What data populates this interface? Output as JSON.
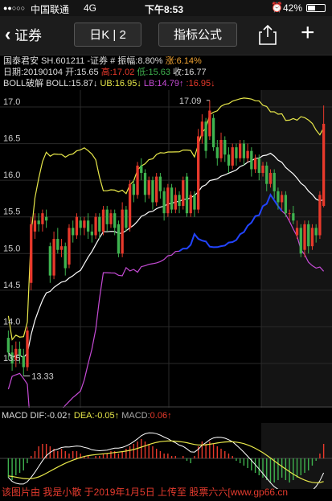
{
  "statusbar": {
    "signal": "●●○○○",
    "carrier": "中国联通",
    "network": "4G",
    "time": "下午8:53",
    "battery": "42%"
  },
  "navbar": {
    "back_label": "证券",
    "period_label": "日K | 2",
    "indicator_label": "指标公式"
  },
  "info": {
    "name": "国泰君安 SH.601211 -证券",
    "amplitude_prefix": "# 振幅:",
    "amplitude": "8.80%",
    "change_prefix": "涨:",
    "change": "6.14%",
    "date_prefix": "日期:",
    "date": "20190104",
    "open_prefix": "开:",
    "open": "15.65",
    "high_prefix": "高:",
    "high": "17.02",
    "low_prefix": "低:",
    "low": "15.63",
    "close_prefix": "收:",
    "close": "16.77",
    "boll_prefix": "BOLL破解 BOLL:",
    "boll": "15.87↓",
    "ub_prefix": "UB:",
    "ub": "16.95↓",
    "lb_prefix": "LB:",
    "lb": "14.79↑",
    "extra": ":16.95↓"
  },
  "macd": {
    "dif_label": "MACD DIF:",
    "dif": "-0.02↑",
    "dea_label": "DEA:",
    "dea": "-0.05↑",
    "macd_label": "MACD:",
    "macd": "0.06↑"
  },
  "watermark": "该图片由 我是小散 于2019年1月5日 上传至 股票六六[www.gp66.cn",
  "colors": {
    "up": "#e8392b",
    "down": "#3fb34f",
    "ub": "#e8e84a",
    "mid": "#ffffff",
    "lb": "#c64bd6",
    "lb_highlight": "#2244ff",
    "boll_ub_peak": "#ff3b30"
  },
  "chart_data": {
    "type": "candlestick",
    "price_ticks": [
      "17.0",
      "16.5",
      "16.0",
      "15.5",
      "15.0",
      "14.5",
      "14.0",
      "13.5"
    ],
    "ylim": [
      13.3,
      17.2
    ],
    "annotations": [
      {
        "text": "17.09",
        "value": 17.09
      },
      {
        "text": "13.33",
        "value": 13.33
      }
    ],
    "candles": [
      [
        13.85,
        13.65,
        13.95,
        13.55
      ],
      [
        13.65,
        13.5,
        13.75,
        13.4
      ],
      [
        13.55,
        13.7,
        13.8,
        13.45
      ],
      [
        13.7,
        13.6,
        13.8,
        13.5
      ],
      [
        13.6,
        13.45,
        13.7,
        13.33
      ],
      [
        13.45,
        13.95,
        14.0,
        13.4
      ],
      [
        14.6,
        15.4,
        15.5,
        14.5
      ],
      [
        15.3,
        15.45,
        15.55,
        15.2
      ],
      [
        15.45,
        15.4,
        15.55,
        15.3
      ],
      [
        15.4,
        15.55,
        15.6,
        15.3
      ],
      [
        15.5,
        15.45,
        15.6,
        15.35
      ],
      [
        15.1,
        14.7,
        15.15,
        14.6
      ],
      [
        14.7,
        15.2,
        15.3,
        14.65
      ],
      [
        15.2,
        15.05,
        15.35,
        15.0
      ],
      [
        15.05,
        15.1,
        15.2,
        14.95
      ],
      [
        15.1,
        14.8,
        15.15,
        14.7
      ],
      [
        14.85,
        15.35,
        15.4,
        14.8
      ],
      [
        15.35,
        15.25,
        15.45,
        15.15
      ],
      [
        15.25,
        15.5,
        15.55,
        15.2
      ],
      [
        15.45,
        15.35,
        15.5,
        15.25
      ],
      [
        15.35,
        15.45,
        15.5,
        15.25
      ],
      [
        15.45,
        15.3,
        15.55,
        15.2
      ],
      [
        15.3,
        15.25,
        15.4,
        15.15
      ],
      [
        15.25,
        15.5,
        15.55,
        15.2
      ],
      [
        15.5,
        15.3,
        15.55,
        15.2
      ],
      [
        15.3,
        15.6,
        15.65,
        15.25
      ],
      [
        15.6,
        15.4,
        15.65,
        15.3
      ],
      [
        15.4,
        15.55,
        15.6,
        15.35
      ],
      [
        15.55,
        15.35,
        15.6,
        15.25
      ],
      [
        15.4,
        15.0,
        15.45,
        14.95
      ],
      [
        15.0,
        15.6,
        15.7,
        14.95
      ],
      [
        15.6,
        15.35,
        15.65,
        15.3
      ],
      [
        15.35,
        15.95,
        16.0,
        15.3
      ],
      [
        15.95,
        15.8,
        16.0,
        15.7
      ],
      [
        15.8,
        16.2,
        16.25,
        15.75
      ],
      [
        16.2,
        16.1,
        16.3,
        16.0
      ],
      [
        16.1,
        15.8,
        16.15,
        15.7
      ],
      [
        15.8,
        16.0,
        16.05,
        15.75
      ],
      [
        16.0,
        15.7,
        16.05,
        15.6
      ],
      [
        15.7,
        16.05,
        16.1,
        15.65
      ],
      [
        16.05,
        15.85,
        16.1,
        15.75
      ],
      [
        15.85,
        15.55,
        15.9,
        15.45
      ],
      [
        15.55,
        15.9,
        15.95,
        15.5
      ],
      [
        15.9,
        15.6,
        15.95,
        15.55
      ],
      [
        15.6,
        15.8,
        15.9,
        15.55
      ],
      [
        15.8,
        15.65,
        15.85,
        15.55
      ],
      [
        15.65,
        16.0,
        16.05,
        15.6
      ],
      [
        16.05,
        15.55,
        16.1,
        15.5
      ],
      [
        15.55,
        15.8,
        15.85,
        15.5
      ],
      [
        15.8,
        15.6,
        15.85,
        15.5
      ],
      [
        15.6,
        16.6,
        16.7,
        15.55
      ],
      [
        16.6,
        16.8,
        16.9,
        16.5
      ],
      [
        16.8,
        16.4,
        16.85,
        16.3
      ],
      [
        16.6,
        16.95,
        17.09,
        16.55
      ],
      [
        16.85,
        16.45,
        16.9,
        16.4
      ],
      [
        16.45,
        16.3,
        16.55,
        16.2
      ],
      [
        16.3,
        16.55,
        16.65,
        16.25
      ],
      [
        16.55,
        16.35,
        16.6,
        16.25
      ],
      [
        16.35,
        16.2,
        16.45,
        16.1
      ],
      [
        16.2,
        16.45,
        16.5,
        16.15
      ],
      [
        16.45,
        16.3,
        16.5,
        16.2
      ],
      [
        16.3,
        16.5,
        16.55,
        16.25
      ],
      [
        16.5,
        16.3,
        16.55,
        16.2
      ],
      [
        16.3,
        16.4,
        16.5,
        16.25
      ],
      [
        16.4,
        16.15,
        16.45,
        16.05
      ],
      [
        16.15,
        16.3,
        16.35,
        16.1
      ],
      [
        16.3,
        16.1,
        16.35,
        16.0
      ],
      [
        16.1,
        16.2,
        16.25,
        16.05
      ],
      [
        16.2,
        15.95,
        16.25,
        15.85
      ],
      [
        15.95,
        16.1,
        16.15,
        15.9
      ],
      [
        16.1,
        15.85,
        16.15,
        15.75
      ],
      [
        15.85,
        15.7,
        15.9,
        15.6
      ],
      [
        15.7,
        15.8,
        15.85,
        15.6
      ],
      [
        15.8,
        15.55,
        15.85,
        15.5
      ],
      [
        15.55,
        15.55,
        15.6,
        15.45
      ],
      [
        15.55,
        15.45,
        15.65,
        15.4
      ],
      [
        15.25,
        15.35,
        15.45,
        15.2
      ],
      [
        15.35,
        15.0,
        15.4,
        14.95
      ],
      [
        15.05,
        15.4,
        15.45,
        14.95
      ],
      [
        15.4,
        15.1,
        15.45,
        15.0
      ],
      [
        15.1,
        15.35,
        15.4,
        15.05
      ],
      [
        15.35,
        15.25,
        15.4,
        15.15
      ],
      [
        15.25,
        15.8,
        15.85,
        15.2
      ],
      [
        15.65,
        16.77,
        17.02,
        15.63
      ]
    ],
    "macd_hist": [
      -0.8,
      -0.9,
      -0.7,
      -0.6,
      -0.5,
      -0.2,
      0.1,
      0.3,
      0.5,
      0.6,
      0.6,
      0.5,
      0.4,
      0.3,
      0.4,
      0.3,
      0.2,
      0.3,
      0.3,
      0.2,
      0.1,
      0.1,
      0.0,
      0.1,
      0.1,
      0.2,
      0.2,
      0.3,
      0.3,
      0.2,
      0.3,
      0.4,
      0.5,
      0.6,
      0.7,
      0.8,
      0.7,
      0.6,
      0.5,
      0.4,
      0.3,
      0.2,
      0.2,
      0.1,
      0.1,
      0.0,
      0.1,
      -0.1,
      -0.2,
      0.1,
      0.5,
      0.7,
      0.6,
      0.7,
      0.6,
      0.5,
      0.4,
      0.3,
      0.2,
      0.1,
      -0.1,
      -0.2,
      -0.3,
      -0.4,
      -0.5,
      -0.6,
      -0.7,
      -0.8,
      -0.9,
      -1.0,
      -1.0,
      -0.9,
      -0.8,
      -0.9,
      -1.0,
      -0.9,
      -0.8,
      -0.7,
      -0.6,
      -0.5,
      -0.3,
      -0.1,
      0.2,
      0.6
    ]
  }
}
